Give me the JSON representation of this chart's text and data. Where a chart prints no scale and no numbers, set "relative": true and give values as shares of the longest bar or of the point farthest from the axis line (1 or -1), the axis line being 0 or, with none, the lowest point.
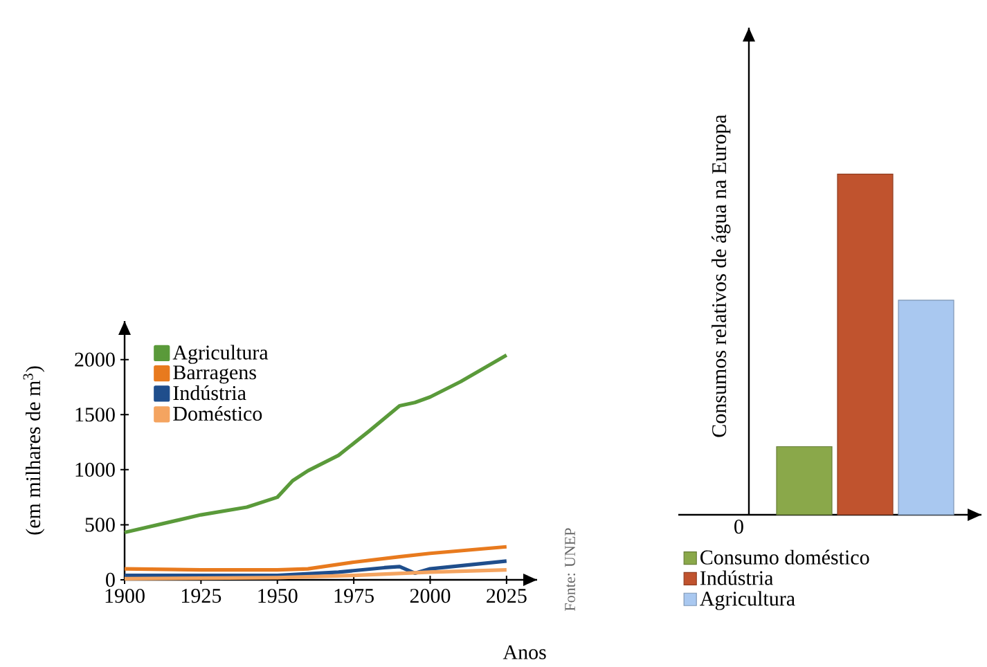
{
  "chart_data": [
    {
      "type": "line",
      "xlabel": "Anos",
      "ylabel": "(em milhares de m$^{3}$)",
      "annotations": [
        "Fonte: UNEP"
      ],
      "xlim": [
        1900,
        2035
      ],
      "ylim": [
        0,
        2350
      ],
      "xticks": [
        1900,
        1925,
        1950,
        1975,
        2000,
        2025
      ],
      "yticks": [
        0,
        500,
        1000,
        1500,
        2000
      ],
      "legend": "top left",
      "marker": "none",
      "line_style": "solid",
      "grid": false,
      "series": [
        {
          "name": "Agricultura",
          "color": "#5a9a3a",
          "x": [
            1900,
            1925,
            1940,
            1950,
            1955,
            1960,
            1970,
            1980,
            1990,
            1995,
            2000,
            2010,
            2025
          ],
          "values": [
            430,
            590,
            660,
            750,
            900,
            990,
            1130,
            1350,
            1580,
            1610,
            1660,
            1800,
            2040
          ]
        },
        {
          "name": "Barragens",
          "color": "#e87a1e",
          "x": [
            1900,
            1925,
            1950,
            1960,
            1975,
            1990,
            2000,
            2025
          ],
          "values": [
            100,
            90,
            90,
            100,
            160,
            210,
            240,
            300
          ]
        },
        {
          "name": "Indústria",
          "color": "#1f4e8c",
          "x": [
            1900,
            1950,
            1970,
            1985,
            1990,
            1995,
            2000,
            2025
          ],
          "values": [
            40,
            40,
            70,
            110,
            120,
            60,
            100,
            170
          ]
        },
        {
          "name": "Doméstico",
          "color": "#f4a460",
          "x": [
            1900,
            1950,
            1975,
            2000,
            2025
          ],
          "values": [
            10,
            20,
            40,
            70,
            90
          ]
        }
      ]
    },
    {
      "type": "bar",
      "ylabel": "Consumos relativos de água na Europa",
      "annotations": [
        "0"
      ],
      "relative": true,
      "legend": "bottom",
      "grid": false,
      "categories": [
        null
      ],
      "series": [
        {
          "name": "Consumo doméstico",
          "color": "#8aa84a",
          "values": [
            0.2
          ]
        },
        {
          "name": "Indústria",
          "color": "#c0532e",
          "values": [
            1
          ]
        },
        {
          "name": "Agricultura",
          "color": "#a9c8f0",
          "values": [
            0.63
          ]
        }
      ]
    }
  ]
}
